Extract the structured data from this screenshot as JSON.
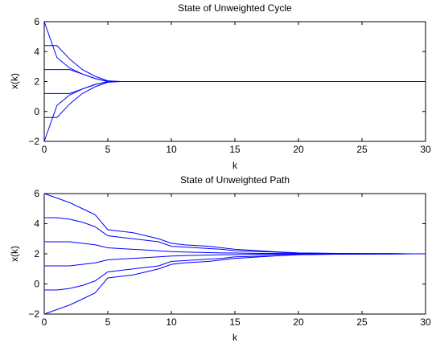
{
  "chart_data": [
    {
      "type": "line",
      "title": "State of Unweighted Cycle",
      "xlabel": "k",
      "ylabel": "x(k)",
      "xlim": [
        0,
        30
      ],
      "ylim": [
        -2,
        6
      ],
      "xticks": [
        "0",
        "5",
        "10",
        "15",
        "20",
        "25",
        "30"
      ],
      "yticks": [
        "−2",
        "0",
        "2",
        "4",
        "6"
      ],
      "grid": false,
      "series_color": "#0000ff",
      "x": [
        0,
        1,
        2,
        3,
        4,
        5,
        6,
        7,
        8,
        9,
        10,
        11,
        12,
        13,
        14,
        15,
        16,
        17,
        18,
        19,
        20,
        21,
        22,
        23,
        24,
        25,
        26,
        27,
        28,
        29,
        30
      ],
      "series": [
        {
          "values": [
            6.0,
            3.6,
            2.9,
            2.5,
            2.2,
            2.0,
            2.0,
            2.0,
            2.0,
            2.0,
            2.0,
            2.0,
            2.0,
            2.0,
            2.0,
            2.0,
            2.0,
            2.0,
            2.0,
            2.0,
            2.0,
            2.0,
            2.0,
            2.0,
            2.0,
            2.0,
            2.0,
            2.0,
            2.0,
            2.0,
            2.0
          ]
        },
        {
          "values": [
            4.4,
            4.4,
            3.5,
            2.8,
            2.35,
            2.05,
            2.0,
            2.0,
            2.0,
            2.0,
            2.0,
            2.0,
            2.0,
            2.0,
            2.0,
            2.0,
            2.0,
            2.0,
            2.0,
            2.0,
            2.0,
            2.0,
            2.0,
            2.0,
            2.0,
            2.0,
            2.0,
            2.0,
            2.0,
            2.0,
            2.0
          ]
        },
        {
          "values": [
            2.8,
            2.8,
            2.8,
            2.5,
            2.2,
            2.02,
            2.0,
            2.0,
            2.0,
            2.0,
            2.0,
            2.0,
            2.0,
            2.0,
            2.0,
            2.0,
            2.0,
            2.0,
            2.0,
            2.0,
            2.0,
            2.0,
            2.0,
            2.0,
            2.0,
            2.0,
            2.0,
            2.0,
            2.0,
            2.0,
            2.0
          ]
        },
        {
          "values": [
            1.2,
            1.2,
            1.2,
            1.5,
            1.8,
            1.98,
            2.0,
            2.0,
            2.0,
            2.0,
            2.0,
            2.0,
            2.0,
            2.0,
            2.0,
            2.0,
            2.0,
            2.0,
            2.0,
            2.0,
            2.0,
            2.0,
            2.0,
            2.0,
            2.0,
            2.0,
            2.0,
            2.0,
            2.0,
            2.0,
            2.0
          ]
        },
        {
          "values": [
            -0.4,
            -0.4,
            0.5,
            1.2,
            1.65,
            1.95,
            2.0,
            2.0,
            2.0,
            2.0,
            2.0,
            2.0,
            2.0,
            2.0,
            2.0,
            2.0,
            2.0,
            2.0,
            2.0,
            2.0,
            2.0,
            2.0,
            2.0,
            2.0,
            2.0,
            2.0,
            2.0,
            2.0,
            2.0,
            2.0,
            2.0
          ]
        },
        {
          "values": [
            -2.0,
            0.4,
            1.1,
            1.5,
            1.8,
            2.0,
            2.0,
            2.0,
            2.0,
            2.0,
            2.0,
            2.0,
            2.0,
            2.0,
            2.0,
            2.0,
            2.0,
            2.0,
            2.0,
            2.0,
            2.0,
            2.0,
            2.0,
            2.0,
            2.0,
            2.0,
            2.0,
            2.0,
            2.0,
            2.0,
            2.0
          ]
        }
      ]
    },
    {
      "type": "line",
      "title": "State of Unweighted Path",
      "xlabel": "k",
      "ylabel": "x(k)",
      "xlim": [
        0,
        30
      ],
      "ylim": [
        -2,
        6
      ],
      "xticks": [
        "0",
        "5",
        "10",
        "15",
        "20",
        "25",
        "30"
      ],
      "yticks": [
        "−2",
        "0",
        "2",
        "4",
        "6"
      ],
      "grid": false,
      "series_color": "#0000ff",
      "x": [
        0,
        1,
        2,
        3,
        4,
        5,
        6,
        7,
        8,
        9,
        10,
        11,
        12,
        13,
        14,
        15,
        16,
        17,
        18,
        19,
        20,
        21,
        22,
        23,
        24,
        25,
        26,
        27,
        28,
        29,
        30
      ],
      "series": [
        {
          "values": [
            6.0,
            5.7,
            5.4,
            5.0,
            4.6,
            3.6,
            3.5,
            3.4,
            3.2,
            3.0,
            2.7,
            2.6,
            2.55,
            2.5,
            2.4,
            2.3,
            2.25,
            2.2,
            2.15,
            2.1,
            2.06,
            2.05,
            2.04,
            2.03,
            2.02,
            2.02,
            2.01,
            2.01,
            2.01,
            2.0,
            2.0
          ]
        },
        {
          "values": [
            4.4,
            4.4,
            4.3,
            4.1,
            3.8,
            3.2,
            3.1,
            3.0,
            2.9,
            2.8,
            2.5,
            2.45,
            2.4,
            2.35,
            2.3,
            2.2,
            2.18,
            2.15,
            2.12,
            2.08,
            2.04,
            2.03,
            2.03,
            2.02,
            2.02,
            2.01,
            2.01,
            2.01,
            2.0,
            2.0,
            2.0
          ]
        },
        {
          "values": [
            2.8,
            2.8,
            2.8,
            2.7,
            2.6,
            2.4,
            2.35,
            2.3,
            2.25,
            2.2,
            2.15,
            2.12,
            2.1,
            2.08,
            2.06,
            2.05,
            2.04,
            2.03,
            2.03,
            2.02,
            2.01,
            2.01,
            2.01,
            2.0,
            2.0,
            2.0,
            2.0,
            2.0,
            2.0,
            2.0,
            2.0
          ]
        },
        {
          "values": [
            1.2,
            1.2,
            1.2,
            1.3,
            1.4,
            1.6,
            1.65,
            1.7,
            1.75,
            1.8,
            1.85,
            1.88,
            1.9,
            1.92,
            1.94,
            1.95,
            1.96,
            1.97,
            1.97,
            1.98,
            1.99,
            1.99,
            1.99,
            2.0,
            2.0,
            2.0,
            2.0,
            2.0,
            2.0,
            2.0,
            2.0
          ]
        },
        {
          "values": [
            -0.4,
            -0.4,
            -0.3,
            -0.1,
            0.2,
            0.8,
            0.9,
            1.0,
            1.1,
            1.2,
            1.5,
            1.55,
            1.6,
            1.65,
            1.7,
            1.8,
            1.82,
            1.85,
            1.88,
            1.92,
            1.96,
            1.97,
            1.97,
            1.98,
            1.98,
            1.99,
            1.99,
            1.99,
            2.0,
            2.0,
            2.0
          ]
        },
        {
          "values": [
            -2.0,
            -1.7,
            -1.4,
            -1.0,
            -0.6,
            0.4,
            0.5,
            0.6,
            0.8,
            1.0,
            1.3,
            1.4,
            1.45,
            1.5,
            1.6,
            1.7,
            1.75,
            1.8,
            1.85,
            1.9,
            1.94,
            1.95,
            1.96,
            1.97,
            1.98,
            1.98,
            1.99,
            1.99,
            1.99,
            2.0,
            2.0
          ]
        }
      ]
    }
  ]
}
